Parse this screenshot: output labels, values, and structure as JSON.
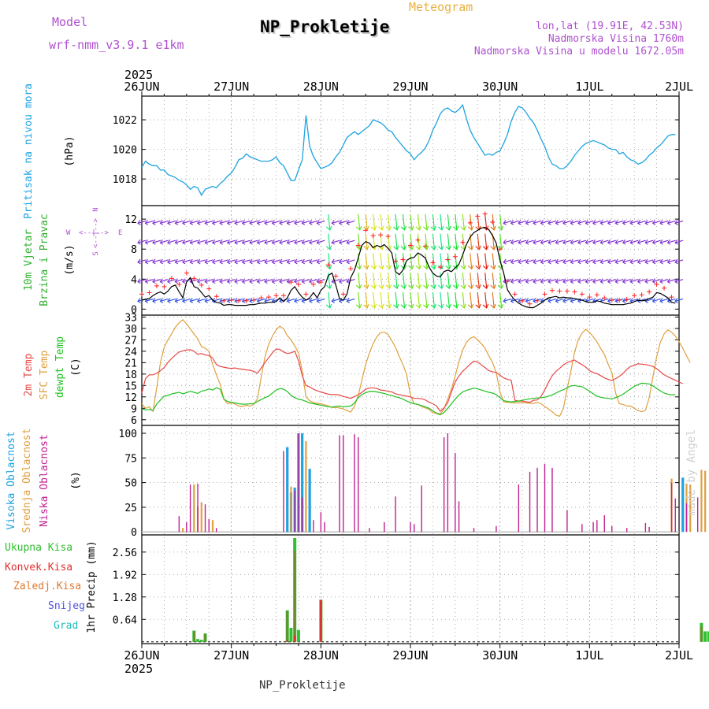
{
  "header": {
    "model_label": "Model",
    "model_name": "wrf-nmm_v3.9.1  e1km",
    "station": "NP_Prokletije",
    "meteogram": "Meteogram",
    "lonlat": "lon,lat (19.91E, 42.53N)",
    "altitude": "Nadmorska Visina 1760m",
    "model_altitude": "Nadmorska Visina u modelu 1672.05m",
    "footer_station": "NP_Prokletije",
    "watermark": "made by Angel"
  },
  "colors": {
    "pressure": "#1fa3e0",
    "wind_speed": "#000000",
    "gust_marker": "#ff2020",
    "temp_2m": "#e84848",
    "temp_sfc": "#e0a040",
    "dewpoint": "#20c020",
    "cloud_high": "#1fa3e0",
    "cloud_mid": "#e0a040",
    "cloud_low": "#c02090",
    "precip_total": "#30c030",
    "precip_conv": "#e03030",
    "precip_strat": "#e07a30",
    "snow": "#5050e0",
    "hail": "#20c0c0",
    "purple_text": "#b050d0"
  },
  "chart_data": {
    "x_axis": {
      "year_top": "2025",
      "year_bottom": "2025",
      "day_labels": [
        "26JUN",
        "27JUN",
        "28JUN",
        "29JUN",
        "30JUN",
        "1JUL",
        "2JUL"
      ],
      "hours": 144
    },
    "pressure": {
      "type": "line",
      "ylabel": "Pritisak na nivou mora",
      "unit": "(hPa)",
      "yticks": [
        1018,
        1020,
        1022
      ],
      "ylim": [
        1016.2,
        1023.6
      ],
      "values": [
        1018.8,
        1019.2,
        1019.0,
        1018.9,
        1018.9,
        1018.6,
        1018.6,
        1018.3,
        1018.2,
        1018.1,
        1017.9,
        1017.8,
        1017.6,
        1017.3,
        1017.5,
        1017.4,
        1016.9,
        1017.3,
        1017.4,
        1017.5,
        1017.4,
        1017.7,
        1017.9,
        1018.2,
        1018.4,
        1018.8,
        1019.3,
        1019.4,
        1019.7,
        1019.5,
        1019.4,
        1019.3,
        1019.2,
        1019.2,
        1019.2,
        1019.3,
        1019.5,
        1019.1,
        1018.9,
        1018.4,
        1017.9,
        1017.9,
        1018.6,
        1019.3,
        1022.3,
        1020.2,
        1019.5,
        1019.1,
        1018.7,
        1018.8,
        1018.9,
        1019.1,
        1019.5,
        1019.8,
        1020.3,
        1020.8,
        1021.0,
        1021.2,
        1021.0,
        1021.2,
        1021.4,
        1021.6,
        1022.0,
        1021.9,
        1021.8,
        1021.6,
        1021.3,
        1021.2,
        1020.8,
        1020.5,
        1020.2,
        1019.9,
        1019.7,
        1019.3,
        1019.6,
        1019.8,
        1020.1,
        1020.6,
        1021.3,
        1021.8,
        1022.4,
        1022.7,
        1022.8,
        1022.6,
        1022.5,
        1022.7,
        1023.0,
        1022.1,
        1021.3,
        1020.8,
        1020.4,
        1020.0,
        1019.6,
        1019.7,
        1019.6,
        1019.8,
        1019.9,
        1020.4,
        1021.0,
        1021.9,
        1022.5,
        1022.9,
        1022.8,
        1022.5,
        1022.1,
        1021.8,
        1021.3,
        1020.7,
        1020.2,
        1019.5,
        1019.0,
        1018.9,
        1018.7,
        1018.7,
        1018.9,
        1019.2,
        1019.6,
        1019.9,
        1020.2,
        1020.4,
        1020.5,
        1020.6,
        1020.5,
        1020.4,
        1020.3,
        1020.1,
        1020.0,
        1020.0,
        1019.7,
        1019.8,
        1019.5,
        1019.3,
        1019.2,
        1019.0,
        1019.1,
        1019.3,
        1019.6,
        1019.8,
        1020.1,
        1020.3,
        1020.6,
        1020.9,
        1021.0,
        1021.0
      ]
    },
    "wind": {
      "type": "line",
      "ylabel_1": "10m Vjetar",
      "ylabel_2": "Brzina i Pravac",
      "unit": "(m/s)",
      "legend_w": "W",
      "legend_e": "E",
      "legend_n": "N",
      "legend_s": "S",
      "yticks": [
        0,
        4,
        8,
        12
      ],
      "ylim": [
        -0.8,
        13.8
      ],
      "speed_values": [
        1.2,
        1.3,
        1.4,
        1.8,
        2.1,
        2.3,
        2.0,
        2.4,
        3.0,
        3.2,
        2.3,
        1.5,
        3.6,
        4.2,
        3.0,
        2.8,
        2.2,
        1.6,
        1.8,
        1.2,
        0.9,
        0.8,
        0.5,
        0.6,
        0.6,
        0.5,
        0.5,
        0.5,
        0.5,
        0.6,
        0.6,
        0.7,
        0.8,
        0.8,
        0.9,
        0.9,
        1.0,
        1.5,
        1.0,
        1.5,
        2.5,
        3.0,
        2.2,
        1.6,
        1.2,
        1.5,
        2.2,
        1.5,
        2.5,
        3.0,
        4.5,
        4.8,
        3.2,
        1.4,
        1.2,
        2.0,
        4.2,
        5.2,
        6.8,
        8.5,
        9.0,
        8.8,
        8.2,
        8.5,
        8.3,
        8.6,
        8.1,
        7.5,
        5.0,
        4.6,
        5.2,
        6.5,
        6.8,
        6.9,
        7.5,
        7.2,
        6.8,
        5.6,
        4.8,
        4.4,
        4.3,
        5.0,
        5.2,
        5.0,
        5.5,
        6.0,
        7.2,
        8.6,
        9.6,
        10.2,
        10.5,
        10.8,
        10.9,
        10.6,
        9.8,
        8.8,
        6.5,
        4.8,
        2.6,
        1.8,
        1.2,
        0.8,
        0.5,
        0.3,
        0.2,
        0.2,
        0.5,
        0.8,
        1.2,
        1.5,
        1.6,
        1.7,
        1.5,
        1.6,
        1.5,
        1.5,
        1.4,
        1.3,
        1.2,
        1.0,
        0.9,
        0.9,
        1.1,
        1.0,
        0.8,
        0.7,
        0.6,
        0.6,
        0.6,
        0.6,
        0.7,
        0.8,
        1.0,
        1.2,
        1.1,
        1.2,
        1.4,
        1.6,
        2.2,
        2.1,
        1.8,
        1.5,
        0.9,
        0.8
      ],
      "gust_values": [
        2.0,
        2.1,
        2.2,
        2.7,
        3.1,
        3.3,
        3.0,
        3.4,
        4.1,
        4.4,
        3.3,
        2.4,
        4.8,
        5.4,
        4.1,
        3.9,
        3.2,
        2.5,
        2.7,
        2.0,
        1.7,
        1.5,
        1.1,
        1.2,
        1.2,
        1.1,
        1.1,
        1.1,
        1.1,
        1.2,
        1.2,
        1.3,
        1.5,
        1.5,
        1.6,
        1.6,
        1.8,
        2.4,
        1.8,
        2.4,
        3.6,
        4.2,
        3.3,
        2.5,
        2.0,
        2.4,
        3.3,
        2.4,
        3.6,
        4.2,
        5.9,
        6.2,
        4.4,
        2.2,
        2.0,
        3.0,
        5.4,
        6.6,
        8.5,
        10.1,
        10.5,
        10.4,
        9.8,
        10.1,
        9.9,
        10.3,
        9.7,
        9.0,
        6.4,
        6.0,
        6.6,
        8.1,
        8.5,
        8.5,
        9.2,
        8.8,
        8.4,
        7.1,
        6.2,
        5.7,
        5.6,
        6.4,
        6.6,
        6.4,
        7.0,
        7.5,
        8.9,
        10.4,
        11.5,
        12.1,
        12.4,
        12.6,
        12.7,
        12.4,
        11.6,
        10.4,
        8.0,
        6.1,
        3.7,
        2.7,
        2.0,
        1.5,
        1.1,
        0.8,
        0.7,
        0.7,
        1.1,
        1.5,
        2.0,
        2.4,
        2.5,
        2.6,
        2.4,
        2.5,
        2.4,
        2.4,
        2.3,
        2.2,
        2.0,
        1.7,
        1.6,
        1.6,
        1.9,
        1.8,
        1.5,
        1.3,
        1.2,
        1.2,
        1.2,
        1.2,
        1.3,
        1.5,
        1.8,
        2.0,
        1.9,
        2.0,
        2.3,
        2.5,
        3.3,
        3.2,
        2.8,
        2.4,
        1.6,
        1.5
      ]
    },
    "temperature": {
      "type": "line",
      "ylabel_1": "2m Temp",
      "ylabel_2": "SFC Temp",
      "ylabel_3": "dewpt Temp",
      "unit": "(C)",
      "yticks": [
        6,
        9,
        12,
        15,
        18,
        21,
        24,
        27,
        30,
        33
      ],
      "ylim": [
        4.5,
        33.5
      ],
      "t2m_values": [
        13.0,
        16.8,
        17.8,
        17.8,
        18.2,
        18.9,
        19.7,
        21.1,
        22.1,
        23.0,
        23.8,
        24.1,
        24.3,
        24.4,
        24.0,
        23.2,
        23.4,
        23.0,
        22.9,
        22.2,
        20.5,
        20.0,
        19.8,
        19.6,
        19.5,
        19.6,
        19.4,
        19.3,
        19.1,
        19.0,
        18.7,
        18.2,
        19.6,
        21.0,
        22.3,
        23.6,
        24.6,
        24.5,
        23.8,
        23.4,
        23.6,
        24.0,
        21.5,
        17.6,
        15.0,
        14.6,
        14.0,
        13.6,
        13.3,
        13.0,
        12.7,
        12.6,
        12.6,
        12.5,
        12.1,
        11.9,
        11.6,
        12.1,
        12.5,
        13.2,
        14.0,
        14.3,
        14.4,
        14.2,
        13.8,
        13.7,
        13.5,
        13.3,
        12.8,
        12.6,
        12.4,
        12.2,
        12.0,
        11.6,
        11.6,
        11.5,
        11.2,
        10.6,
        10.2,
        9.6,
        8.2,
        9.1,
        10.5,
        13.3,
        15.9,
        17.5,
        18.7,
        19.6,
        20.6,
        21.4,
        21.2,
        20.4,
        19.7,
        18.9,
        18.6,
        18.4,
        17.7,
        17.0,
        16.6,
        16.4,
        11.1,
        10.9,
        10.9,
        10.7,
        10.6,
        11.1,
        11.2,
        12.1,
        13.8,
        15.8,
        17.6,
        18.7,
        19.5,
        20.4,
        21.0,
        21.4,
        21.7,
        21.0,
        20.5,
        19.8,
        18.9,
        18.4,
        18.1,
        17.6,
        17.0,
        16.6,
        16.3,
        16.8,
        17.4,
        18.2,
        19.2,
        20.0,
        20.3,
        20.7,
        20.6,
        20.5,
        20.3,
        20.0,
        19.4,
        18.6,
        17.8,
        17.3,
        16.8,
        16.4,
        15.9,
        15.5
      ],
      "tsfc_values": [
        10.2,
        9.0,
        9.4,
        8.2,
        14.3,
        21.1,
        25.0,
        27.0,
        28.6,
        30.3,
        31.5,
        32.3,
        31.2,
        29.9,
        28.5,
        27.3,
        25.2,
        24.8,
        24.0,
        20.5,
        17.8,
        15.3,
        11.4,
        10.2,
        10.5,
        10.1,
        9.6,
        9.5,
        9.8,
        9.6,
        10.0,
        11.5,
        17.2,
        22.5,
        25.8,
        28.0,
        29.6,
        30.6,
        29.9,
        28.1,
        27.0,
        25.4,
        23.6,
        18.7,
        12.0,
        11.0,
        10.5,
        10.3,
        10.2,
        9.9,
        9.6,
        9.2,
        9.2,
        9.1,
        8.8,
        8.4,
        8.0,
        9.6,
        12.3,
        16.4,
        20.6,
        23.5,
        26.0,
        27.8,
        28.9,
        29.0,
        28.4,
        26.8,
        25.0,
        22.6,
        20.5,
        17.8,
        12.4,
        10.2,
        10.0,
        9.5,
        9.1,
        8.7,
        7.8,
        7.8,
        7.5,
        8.8,
        11.5,
        14.1,
        17.5,
        21.2,
        24.3,
        26.3,
        27.4,
        27.8,
        27.0,
        26.0,
        24.8,
        22.8,
        21.0,
        18.4,
        13.3,
        10.7,
        10.6,
        10.5,
        10.4,
        10.4,
        10.5,
        10.4,
        10.3,
        10.3,
        10.6,
        10.2,
        9.5,
        8.8,
        8.1,
        7.2,
        6.9,
        9.0,
        14.1,
        18.8,
        23.8,
        27.0,
        28.8,
        29.8,
        28.9,
        27.8,
        26.5,
        24.7,
        23.1,
        20.6,
        18.3,
        13.0,
        10.2,
        10.0,
        9.6,
        9.6,
        9.0,
        8.4,
        8.1,
        8.5,
        11.8,
        17.3,
        22.6,
        26.4,
        28.6,
        29.6,
        29.0,
        28.0,
        26.5,
        24.8,
        22.8,
        21.0
      ],
      "dew_values": [
        8.8,
        8.6,
        8.7,
        8.4,
        10.1,
        11.2,
        12.2,
        12.4,
        12.8,
        13.0,
        13.2,
        12.8,
        13.1,
        13.5,
        13.2,
        12.9,
        13.5,
        13.7,
        14.1,
        13.8,
        14.4,
        14.0,
        11.4,
        10.8,
        10.6,
        10.4,
        10.2,
        10.1,
        10.1,
        10.2,
        10.2,
        10.8,
        11.3,
        11.8,
        12.2,
        13.0,
        13.8,
        14.2,
        14.0,
        13.4,
        12.4,
        11.8,
        11.4,
        11.2,
        10.8,
        10.4,
        10.2,
        10.0,
        9.8,
        9.6,
        9.4,
        9.3,
        9.5,
        9.6,
        9.4,
        9.5,
        9.6,
        10.4,
        11.8,
        12.6,
        13.1,
        13.4,
        13.5,
        13.3,
        13.1,
        12.9,
        12.6,
        12.4,
        12.0,
        11.8,
        11.4,
        10.9,
        10.5,
        10.2,
        10.0,
        9.7,
        9.4,
        9.0,
        8.4,
        7.6,
        7.3,
        7.9,
        9.0,
        10.2,
        11.4,
        12.5,
        13.3,
        13.7,
        14.0,
        14.3,
        14.1,
        13.8,
        13.5,
        13.2,
        13.0,
        12.6,
        11.8,
        11.0,
        10.8,
        10.7,
        10.8,
        10.9,
        11.1,
        11.3,
        11.5,
        11.6,
        11.7,
        11.8,
        11.9,
        12.2,
        12.5,
        13.0,
        13.5,
        13.9,
        14.4,
        14.9,
        15.0,
        14.8,
        14.7,
        14.1,
        13.5,
        12.8,
        12.2,
        11.9,
        11.7,
        11.6,
        11.5,
        11.8,
        12.2,
        12.7,
        13.4,
        14.1,
        14.8,
        15.2,
        15.6,
        15.5,
        15.4,
        14.9,
        14.2,
        13.6,
        13.0,
        12.7,
        12.5,
        12.6
      ]
    },
    "clouds": {
      "type": "bar",
      "ylabel_1": "Visoka Oblacnost",
      "ylabel_2": "Srednja Oblacnost",
      "ylabel_3": "Niska Oblacnost",
      "unit": "(%)",
      "yticks": [
        0,
        25,
        50,
        75,
        100
      ],
      "ylim": [
        -3,
        108
      ],
      "high": [
        [
          39,
          86
        ],
        [
          40,
          40
        ],
        [
          41,
          45
        ],
        [
          42,
          100
        ],
        [
          43,
          100
        ],
        [
          45,
          64
        ],
        [
          145,
          55
        ]
      ],
      "mid": [
        [
          11,
          4
        ],
        [
          14,
          48
        ],
        [
          15,
          26
        ],
        [
          16,
          30
        ],
        [
          19,
          12
        ],
        [
          40,
          46
        ],
        [
          44,
          92
        ],
        [
          142,
          54
        ],
        [
          146,
          49
        ],
        [
          147,
          48
        ],
        [
          150,
          63
        ],
        [
          151,
          62
        ]
      ],
      "low": [
        [
          10,
          16
        ],
        [
          12,
          10
        ],
        [
          13,
          48
        ],
        [
          15,
          49
        ],
        [
          17,
          28
        ],
        [
          18,
          13
        ],
        [
          20,
          4
        ],
        [
          38,
          82
        ],
        [
          41,
          42
        ],
        [
          42,
          100
        ],
        [
          43,
          35
        ],
        [
          46,
          12
        ],
        [
          48,
          20
        ],
        [
          49,
          10
        ],
        [
          53,
          98
        ],
        [
          54,
          98
        ],
        [
          57,
          99
        ],
        [
          58,
          96
        ],
        [
          61,
          4
        ],
        [
          65,
          10
        ],
        [
          68,
          36
        ],
        [
          72,
          10
        ],
        [
          73,
          8
        ],
        [
          75,
          47
        ],
        [
          81,
          96
        ],
        [
          82,
          100
        ],
        [
          84,
          80
        ],
        [
          85,
          31
        ],
        [
          89,
          4
        ],
        [
          95,
          6
        ],
        [
          101,
          48
        ],
        [
          104,
          61
        ],
        [
          106,
          65
        ],
        [
          108,
          69
        ],
        [
          110,
          65
        ],
        [
          114,
          22
        ],
        [
          118,
          8
        ],
        [
          121,
          10
        ],
        [
          122,
          12
        ],
        [
          124,
          17
        ],
        [
          126,
          6
        ],
        [
          130,
          4
        ],
        [
          135,
          9
        ],
        [
          136,
          5
        ],
        [
          142,
          50
        ],
        [
          143,
          34
        ],
        [
          146,
          29
        ],
        [
          149,
          35
        ],
        [
          153,
          26
        ],
        [
          154,
          18
        ]
      ]
    },
    "precip": {
      "type": "bar",
      "legend_total": "Ukupna Kisa",
      "legend_conv": "Konvek.Kisa",
      "legend_strat": "Zaledj.Kisa",
      "legend_snow": "Snijeg",
      "legend_hail": "Grad",
      "ylabel": "1hr Precip (mm)",
      "yticks": [
        0.64,
        1.28,
        1.92,
        2.56
      ],
      "ylim": [
        -0.05,
        3.05
      ],
      "total": [
        [
          14,
          0.32
        ],
        [
          15,
          0.08
        ],
        [
          16,
          0.06
        ],
        [
          17,
          0.24
        ],
        [
          39,
          0.9
        ],
        [
          40,
          0.4
        ],
        [
          41,
          2.96
        ],
        [
          42,
          0.34
        ],
        [
          48,
          1.2
        ],
        [
          150,
          0.54
        ],
        [
          151,
          0.3
        ],
        [
          152,
          0.3
        ],
        [
          154,
          0.58
        ],
        [
          155,
          0.32
        ],
        [
          158,
          0.38
        ],
        [
          159,
          0.12
        ]
      ],
      "conv": [
        [
          39,
          0.05
        ],
        [
          41,
          0.18
        ],
        [
          48,
          1.2
        ],
        [
          154,
          0.58
        ],
        [
          156,
          0.1
        ]
      ],
      "strat": [
        [
          14,
          0.3
        ],
        [
          17,
          0.22
        ],
        [
          39,
          0.88
        ],
        [
          41,
          2.6
        ],
        [
          48,
          1.12
        ],
        [
          150,
          0.45
        ],
        [
          155,
          0.3
        ],
        [
          158,
          0.3
        ]
      ]
    }
  }
}
